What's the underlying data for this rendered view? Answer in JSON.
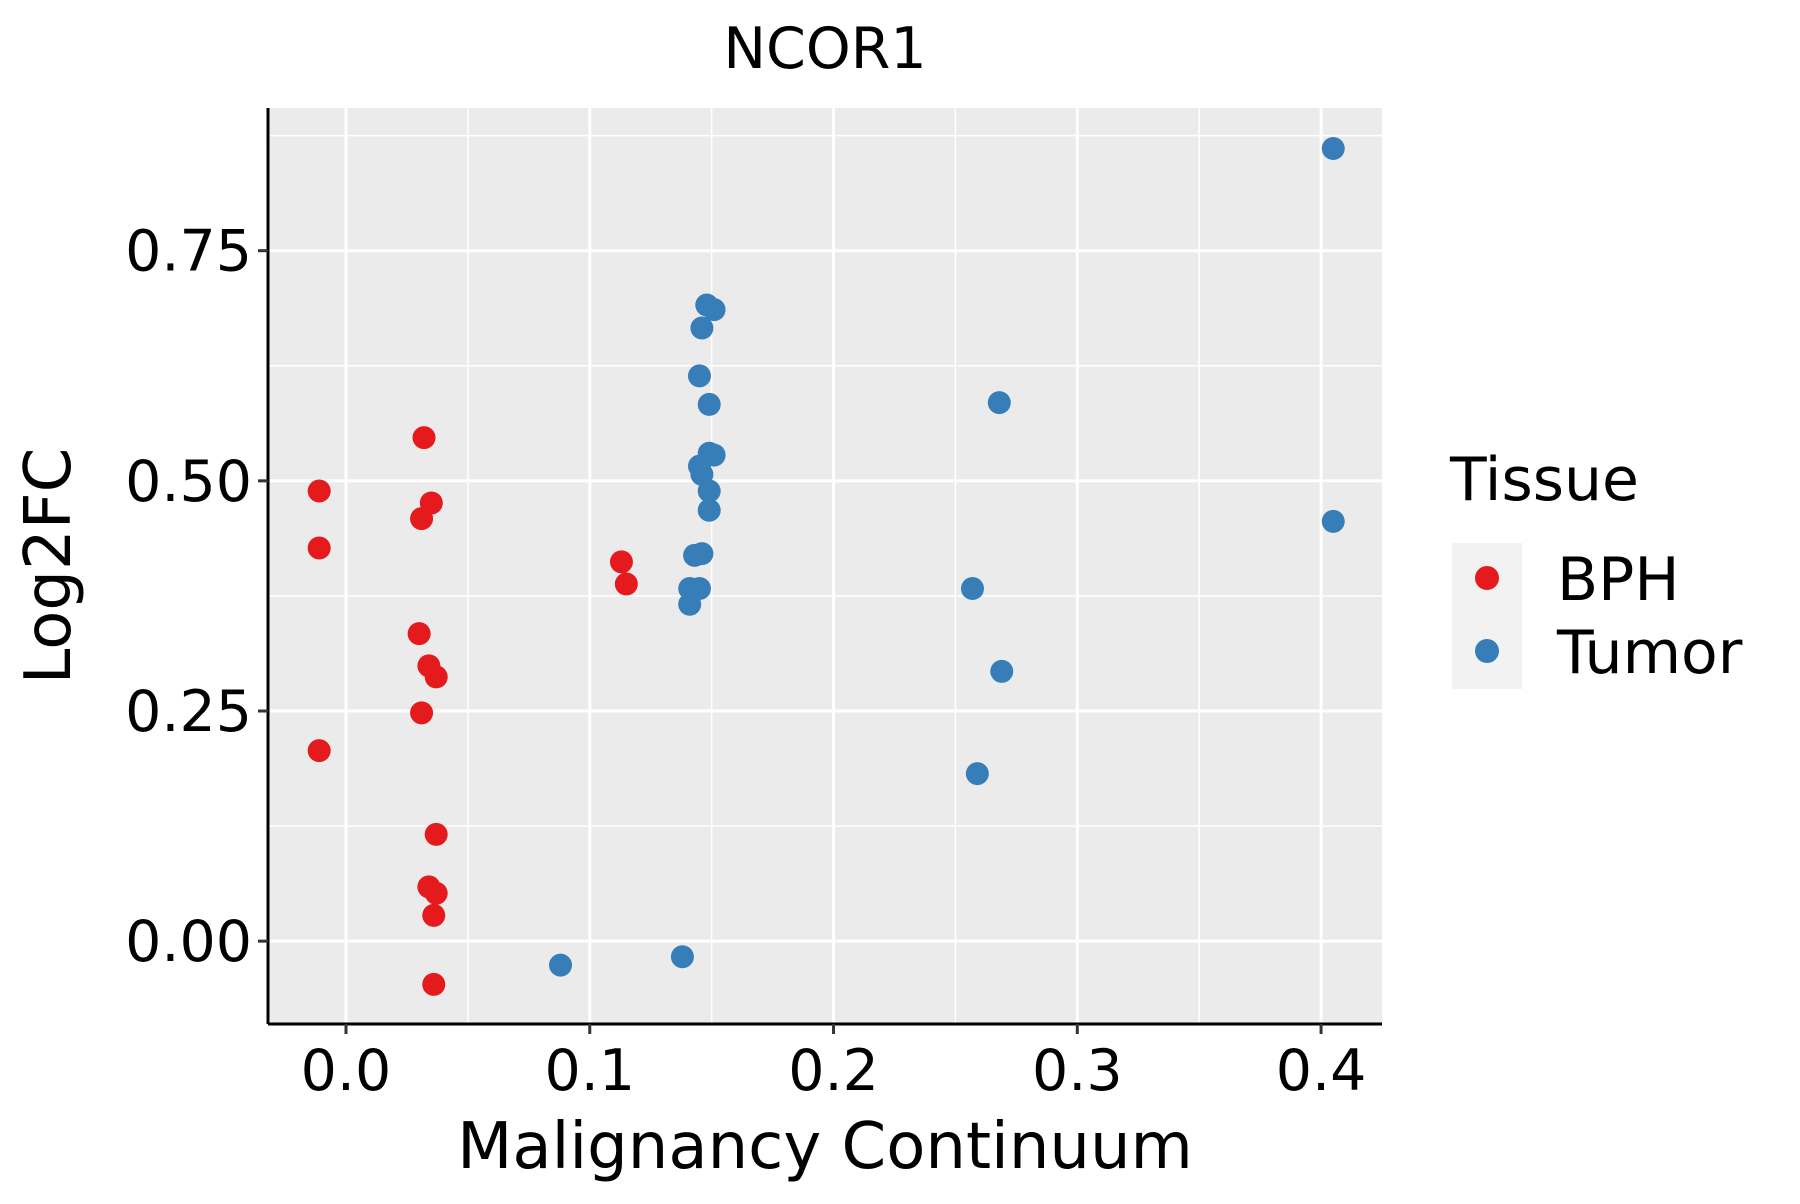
{
  "chart_data": {
    "type": "scatter",
    "title": "NCOR1",
    "xlabel": "Malignancy Continuum",
    "ylabel": "Log2FC",
    "xlim": [
      -0.032,
      0.425
    ],
    "ylim": [
      -0.09,
      0.905
    ],
    "x_ticks": [
      0.0,
      0.1,
      0.2,
      0.3,
      0.4
    ],
    "x_tick_labels": [
      "0.0",
      "0.1",
      "0.2",
      "0.3",
      "0.4"
    ],
    "y_ticks": [
      0.0,
      0.25,
      0.5,
      0.75
    ],
    "y_tick_labels": [
      "0.00",
      "0.25",
      "0.50",
      "0.75"
    ],
    "grid": true,
    "legend": {
      "title": "Tissue",
      "position": "right",
      "entries": [
        {
          "label": "BPH",
          "color": "#E41A1C"
        },
        {
          "label": "Tumor",
          "color": "#377EB8"
        }
      ]
    },
    "series": [
      {
        "name": "BPH",
        "color": "#E41A1C",
        "points": [
          {
            "x": -0.011,
            "y": 0.489
          },
          {
            "x": -0.011,
            "y": 0.427
          },
          {
            "x": -0.011,
            "y": 0.207
          },
          {
            "x": 0.032,
            "y": 0.547
          },
          {
            "x": 0.035,
            "y": 0.476
          },
          {
            "x": 0.031,
            "y": 0.459
          },
          {
            "x": 0.03,
            "y": 0.334
          },
          {
            "x": 0.034,
            "y": 0.299
          },
          {
            "x": 0.037,
            "y": 0.287
          },
          {
            "x": 0.031,
            "y": 0.248
          },
          {
            "x": 0.037,
            "y": 0.116
          },
          {
            "x": 0.034,
            "y": 0.059
          },
          {
            "x": 0.037,
            "y": 0.052
          },
          {
            "x": 0.036,
            "y": 0.028
          },
          {
            "x": 0.036,
            "y": -0.047
          },
          {
            "x": 0.113,
            "y": 0.412
          },
          {
            "x": 0.115,
            "y": 0.388
          }
        ]
      },
      {
        "name": "Tumor",
        "color": "#377EB8",
        "points": [
          {
            "x": 0.405,
            "y": 0.861
          },
          {
            "x": 0.405,
            "y": 0.456
          },
          {
            "x": 0.148,
            "y": 0.691
          },
          {
            "x": 0.151,
            "y": 0.686
          },
          {
            "x": 0.146,
            "y": 0.666
          },
          {
            "x": 0.145,
            "y": 0.614
          },
          {
            "x": 0.149,
            "y": 0.583
          },
          {
            "x": 0.149,
            "y": 0.53
          },
          {
            "x": 0.151,
            "y": 0.528
          },
          {
            "x": 0.145,
            "y": 0.516
          },
          {
            "x": 0.146,
            "y": 0.507
          },
          {
            "x": 0.149,
            "y": 0.489
          },
          {
            "x": 0.149,
            "y": 0.468
          },
          {
            "x": 0.146,
            "y": 0.421
          },
          {
            "x": 0.143,
            "y": 0.419
          },
          {
            "x": 0.141,
            "y": 0.383
          },
          {
            "x": 0.145,
            "y": 0.383
          },
          {
            "x": 0.141,
            "y": 0.366
          },
          {
            "x": 0.088,
            "y": -0.026
          },
          {
            "x": 0.138,
            "y": -0.017
          },
          {
            "x": 0.268,
            "y": 0.585
          },
          {
            "x": 0.257,
            "y": 0.383
          },
          {
            "x": 0.269,
            "y": 0.293
          },
          {
            "x": 0.259,
            "y": 0.182
          }
        ]
      }
    ]
  }
}
